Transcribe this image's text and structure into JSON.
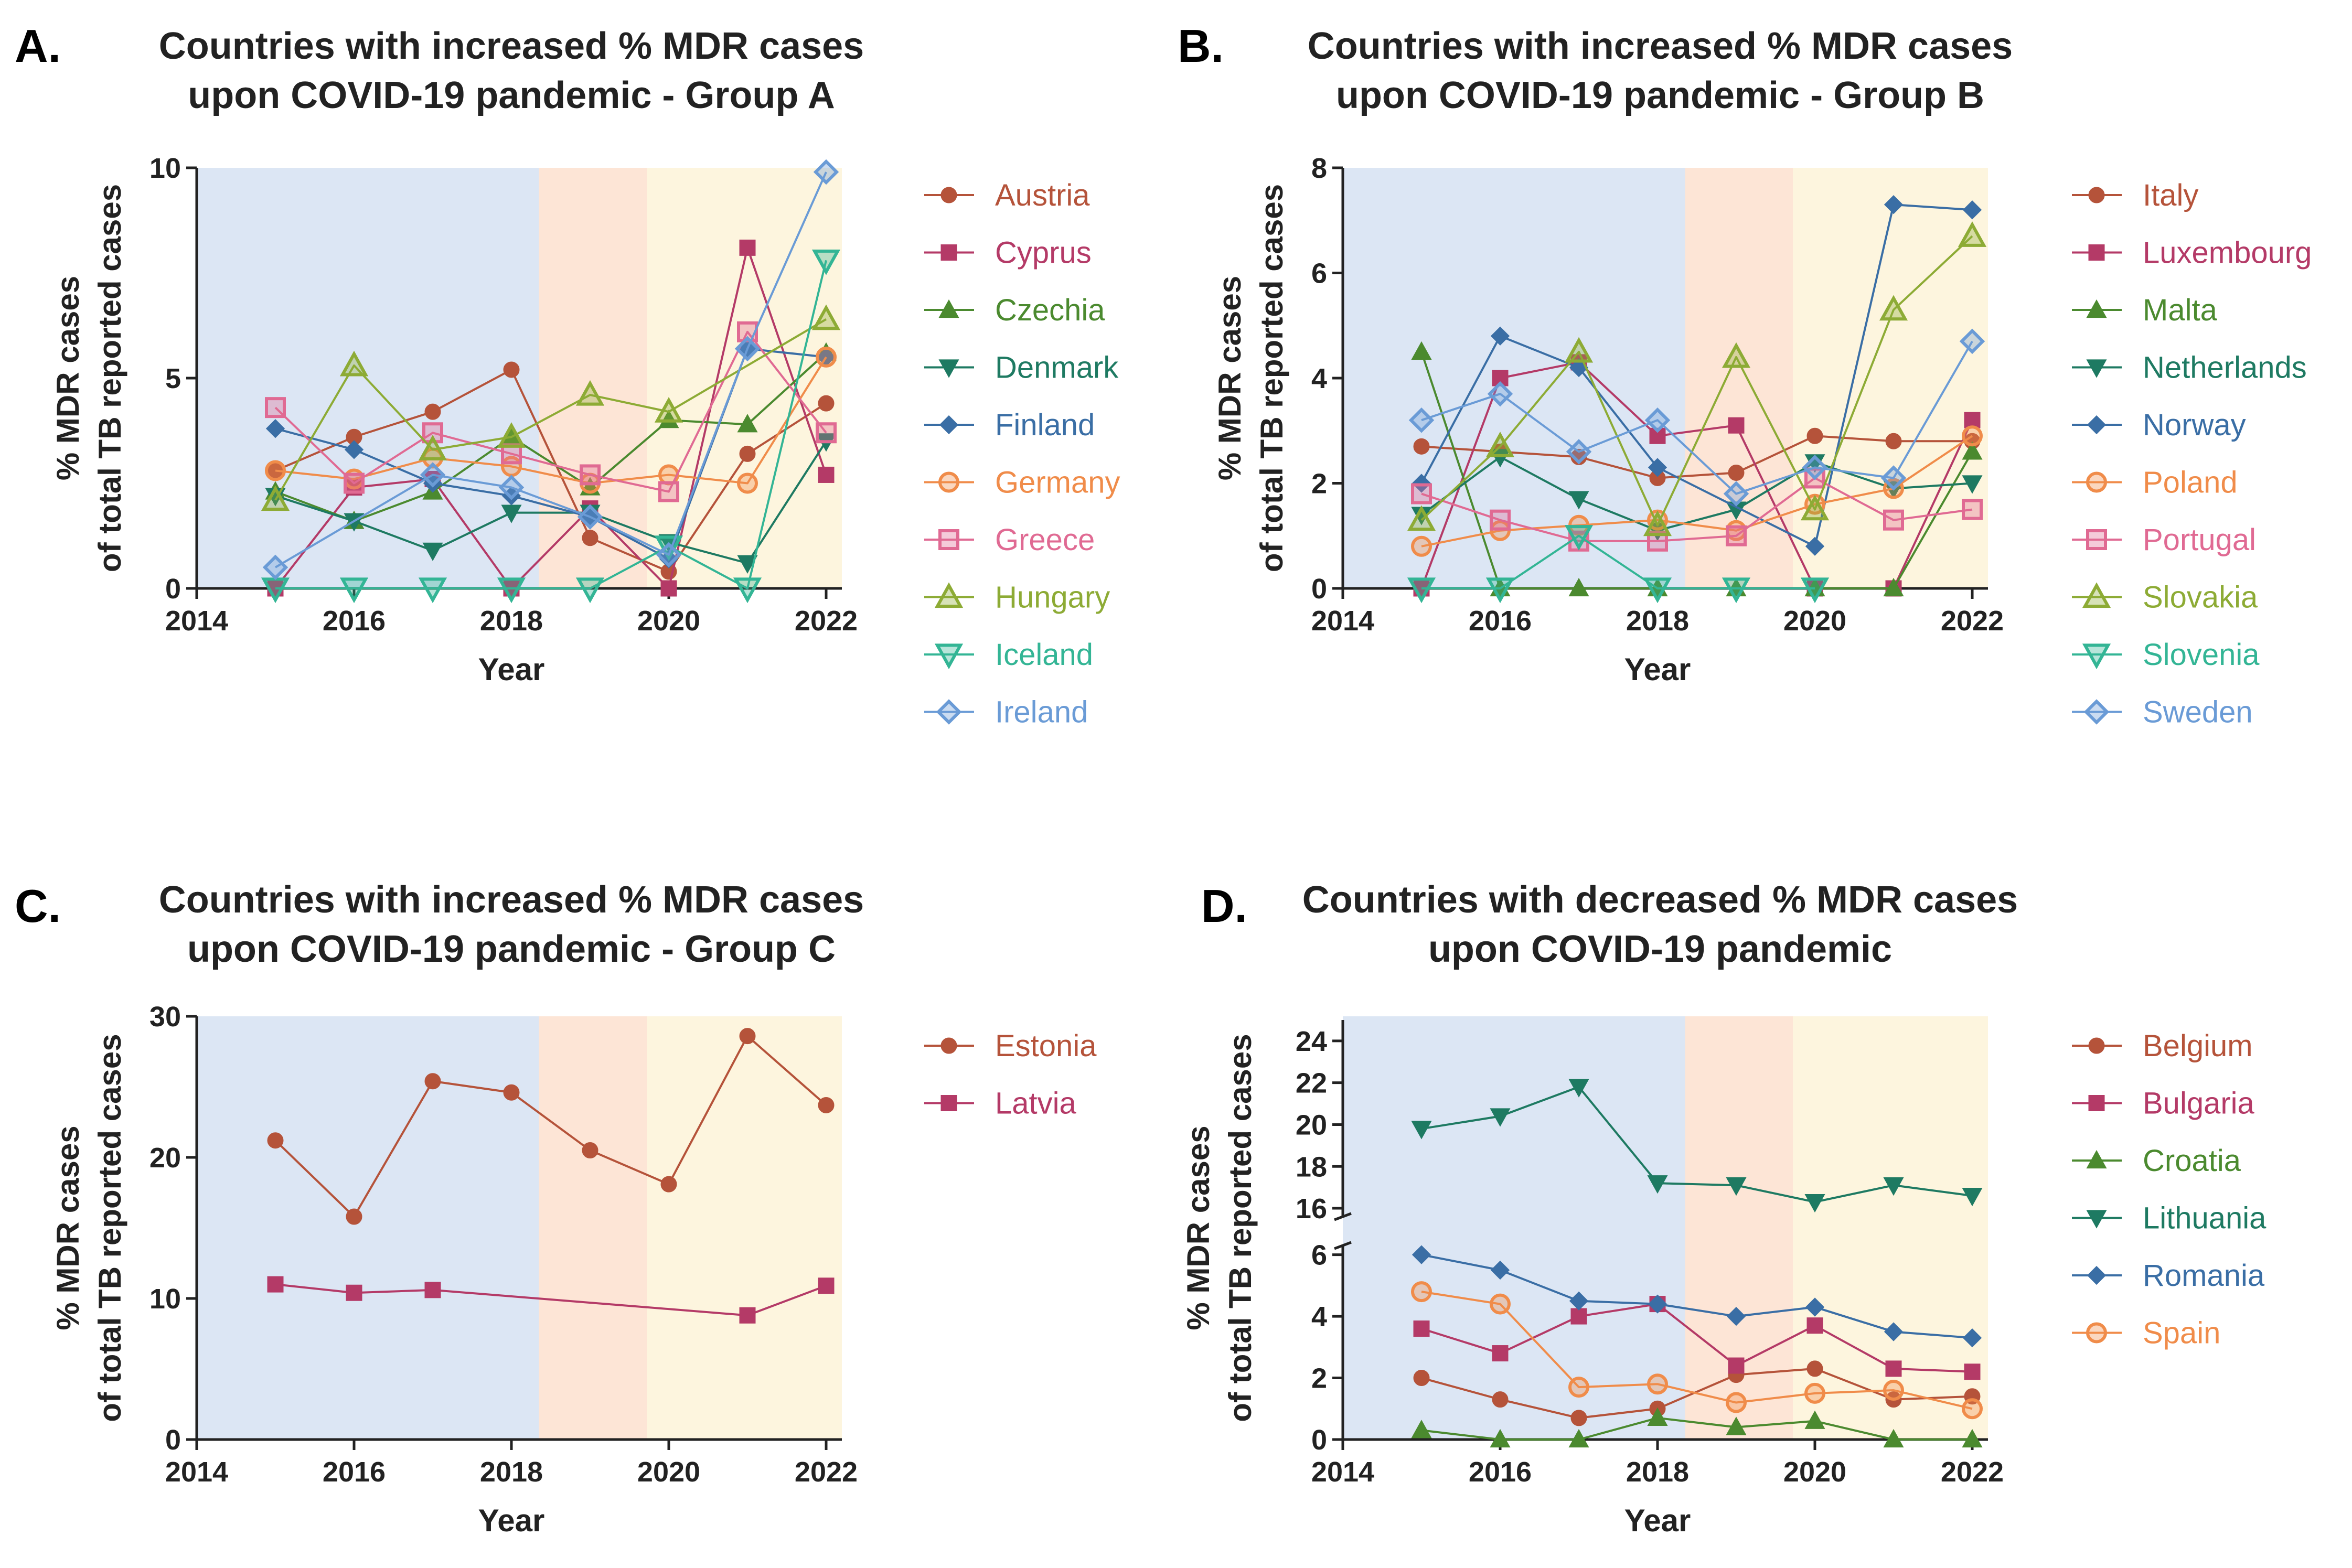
{
  "chart_data": [
    {
      "label": "A.",
      "type": "line",
      "title_lines": [
        "Countries with increased % MDR cases",
        "upon COVID-19 pandemic - Group A"
      ],
      "xlabel": "Year",
      "ylabel_lines": [
        "% MDR cases",
        "of total TB reported cases"
      ],
      "xlim": [
        2014,
        2022
      ],
      "ylim": [
        0,
        10
      ],
      "x_ticks": [
        "2014",
        "2016",
        "2018",
        "2020",
        "2022"
      ],
      "y_ticks": [
        "0",
        "5",
        "10"
      ],
      "periods": [
        {
          "from": 2014,
          "to": 2018.35,
          "color": "#dce6f4"
        },
        {
          "from": 2018.35,
          "to": 2019.72,
          "color": "#fde5d6"
        },
        {
          "from": 2019.72,
          "to": 2022.2,
          "color": "#fdf5de"
        }
      ],
      "years": [
        2015,
        2016,
        2017,
        2018,
        2019,
        2020,
        2021,
        2022
      ],
      "series": [
        {
          "name": "Austria",
          "color": "#b5533a",
          "marker": "circle",
          "values": [
            2.8,
            3.6,
            4.2,
            5.2,
            1.2,
            0.4,
            3.2,
            4.4
          ]
        },
        {
          "name": "Cyprus",
          "color": "#b43a67",
          "marker": "square",
          "values": [
            0,
            2.4,
            2.6,
            0,
            1.9,
            0,
            8.1,
            2.7
          ]
        },
        {
          "name": "Czechia",
          "color": "#4b8a2f",
          "marker": "triangle",
          "values": [
            2.3,
            1.6,
            2.3,
            3.6,
            2.4,
            4.0,
            3.9,
            5.6
          ]
        },
        {
          "name": "Denmark",
          "color": "#1e7a62",
          "marker": "triangle-down",
          "values": [
            2.2,
            1.6,
            0.9,
            1.8,
            1.8,
            1.1,
            0.6,
            3.5
          ]
        },
        {
          "name": "Finland",
          "color": "#3a6ea5",
          "marker": "diamond",
          "values": [
            3.8,
            3.3,
            2.5,
            2.2,
            1.7,
            0.7,
            5.7,
            5.5
          ]
        },
        {
          "name": "Germany",
          "color": "#f08c4a",
          "marker": "circle-open",
          "values": [
            2.8,
            2.6,
            3.1,
            2.9,
            2.5,
            2.7,
            2.5,
            5.5
          ]
        },
        {
          "name": "Greece",
          "color": "#e06a93",
          "marker": "square-open",
          "values": [
            4.3,
            2.5,
            3.7,
            3.2,
            2.7,
            2.3,
            6.1,
            3.7
          ]
        },
        {
          "name": "Hungary",
          "color": "#8dab35",
          "marker": "triangle-open",
          "values": [
            2.1,
            5.3,
            3.3,
            3.6,
            4.6,
            4.2,
            null,
            6.4
          ]
        },
        {
          "name": "Iceland",
          "color": "#33b595",
          "marker": "triangle-down-open",
          "values": [
            0,
            0,
            0,
            0,
            0,
            1.0,
            0,
            7.8
          ]
        },
        {
          "name": "Ireland",
          "color": "#6a9bd6",
          "marker": "diamond-open",
          "values": [
            0.5,
            null,
            2.7,
            2.4,
            1.7,
            0.8,
            5.7,
            9.9
          ]
        }
      ]
    },
    {
      "label": "B.",
      "type": "line",
      "title_lines": [
        "Countries with increased % MDR cases",
        "upon COVID-19 pandemic - Group B"
      ],
      "xlabel": "Year",
      "ylabel_lines": [
        "% MDR cases",
        "of total TB reported cases"
      ],
      "xlim": [
        2014,
        2022
      ],
      "ylim": [
        0,
        8
      ],
      "x_ticks": [
        "2014",
        "2016",
        "2018",
        "2020",
        "2022"
      ],
      "y_ticks": [
        "0",
        "2",
        "4",
        "6",
        "8"
      ],
      "periods": [
        {
          "from": 2014,
          "to": 2018.35,
          "color": "#dce6f4"
        },
        {
          "from": 2018.35,
          "to": 2019.72,
          "color": "#fde5d6"
        },
        {
          "from": 2019.72,
          "to": 2022.2,
          "color": "#fdf5de"
        }
      ],
      "years": [
        2015,
        2016,
        2017,
        2018,
        2019,
        2020,
        2021,
        2022
      ],
      "series": [
        {
          "name": "Italy",
          "color": "#b5533a",
          "marker": "circle",
          "values": [
            2.7,
            2.6,
            2.5,
            2.1,
            2.2,
            2.9,
            2.8,
            2.8
          ]
        },
        {
          "name": "Luxembourg",
          "color": "#b43a67",
          "marker": "square",
          "values": [
            0,
            4.0,
            4.3,
            2.9,
            3.1,
            0,
            0,
            3.2
          ]
        },
        {
          "name": "Malta",
          "color": "#4b8a2f",
          "marker": "triangle",
          "values": [
            4.5,
            0,
            0,
            0,
            0,
            0,
            0,
            2.6
          ]
        },
        {
          "name": "Netherlands",
          "color": "#1e7a62",
          "marker": "triangle-down",
          "values": [
            1.4,
            2.5,
            1.7,
            1.1,
            1.5,
            2.4,
            1.9,
            2.0
          ]
        },
        {
          "name": "Norway",
          "color": "#3a6ea5",
          "marker": "diamond",
          "values": [
            2.0,
            4.8,
            4.2,
            2.3,
            null,
            0.8,
            7.3,
            7.2
          ]
        },
        {
          "name": "Poland",
          "color": "#f08c4a",
          "marker": "circle-open",
          "values": [
            0.8,
            1.1,
            1.2,
            1.3,
            1.1,
            1.6,
            1.9,
            2.9
          ]
        },
        {
          "name": "Portugal",
          "color": "#e06a93",
          "marker": "square-open",
          "values": [
            1.8,
            1.3,
            0.9,
            0.9,
            1.0,
            2.1,
            1.3,
            1.5
          ]
        },
        {
          "name": "Slovakia",
          "color": "#8dab35",
          "marker": "triangle-open",
          "values": [
            1.3,
            2.7,
            4.5,
            1.2,
            4.4,
            1.5,
            5.3,
            6.7
          ]
        },
        {
          "name": "Slovenia",
          "color": "#33b595",
          "marker": "triangle-down-open",
          "values": [
            0,
            0,
            1.0,
            0,
            0,
            0,
            null,
            null
          ]
        },
        {
          "name": "Sweden",
          "color": "#6a9bd6",
          "marker": "diamond-open",
          "values": [
            3.2,
            3.7,
            2.6,
            3.2,
            1.8,
            2.3,
            2.1,
            4.7
          ]
        }
      ]
    },
    {
      "label": "C.",
      "type": "line",
      "title_lines": [
        "Countries with increased % MDR cases",
        "upon COVID-19 pandemic - Group C"
      ],
      "xlabel": "Year",
      "ylabel_lines": [
        "% MDR cases",
        "of total TB reported cases"
      ],
      "xlim": [
        2014,
        2022
      ],
      "ylim": [
        0,
        30
      ],
      "x_ticks": [
        "2014",
        "2016",
        "2018",
        "2020",
        "2022"
      ],
      "y_ticks": [
        "0",
        "10",
        "20",
        "30"
      ],
      "periods": [
        {
          "from": 2014,
          "to": 2018.35,
          "color": "#dce6f4"
        },
        {
          "from": 2018.35,
          "to": 2019.72,
          "color": "#fde5d6"
        },
        {
          "from": 2019.72,
          "to": 2022.2,
          "color": "#fdf5de"
        }
      ],
      "years": [
        2015,
        2016,
        2017,
        2018,
        2019,
        2020,
        2021,
        2022
      ],
      "series": [
        {
          "name": "Estonia",
          "color": "#b5533a",
          "marker": "circle",
          "values": [
            21.2,
            15.8,
            25.4,
            24.6,
            20.5,
            18.1,
            28.6,
            23.7
          ]
        },
        {
          "name": "Latvia",
          "color": "#b43a67",
          "marker": "square",
          "values": [
            11.0,
            10.4,
            10.6,
            null,
            null,
            null,
            8.8,
            10.9
          ]
        }
      ]
    },
    {
      "label": "D.",
      "type": "line",
      "title_lines": [
        "Countries with decreased % MDR cases",
        "upon COVID-19 pandemic"
      ],
      "xlabel": "Year",
      "ylabel_lines": [
        "% MDR cases",
        "of total TB reported cases"
      ],
      "xlim": [
        2014,
        2022
      ],
      "y_axis_break": {
        "lower_range": [
          0,
          6.3
        ],
        "upper_range": [
          15.6,
          25
        ]
      },
      "x_ticks": [
        "2014",
        "2016",
        "2018",
        "2020",
        "2022"
      ],
      "y_ticks_lower": [
        "0",
        "2",
        "4",
        "6"
      ],
      "y_ticks_upper": [
        "16",
        "18",
        "20",
        "22",
        "24"
      ],
      "periods": [
        {
          "from": 2014,
          "to": 2018.35,
          "color": "#dce6f4"
        },
        {
          "from": 2018.35,
          "to": 2019.72,
          "color": "#fde5d6"
        },
        {
          "from": 2019.72,
          "to": 2022.2,
          "color": "#fdf5de"
        }
      ],
      "years": [
        2015,
        2016,
        2017,
        2018,
        2019,
        2020,
        2021,
        2022
      ],
      "series": [
        {
          "name": "Belgium",
          "color": "#b5533a",
          "marker": "circle",
          "values": [
            2.0,
            1.3,
            0.7,
            1.0,
            2.1,
            2.3,
            1.3,
            1.4
          ]
        },
        {
          "name": "Bulgaria",
          "color": "#b43a67",
          "marker": "square",
          "values": [
            3.6,
            2.8,
            4.0,
            4.4,
            2.4,
            3.7,
            2.3,
            2.2
          ]
        },
        {
          "name": "Croatia",
          "color": "#4b8a2f",
          "marker": "triangle",
          "values": [
            0.3,
            0,
            0,
            0.7,
            0.4,
            0.6,
            0,
            0
          ]
        },
        {
          "name": "Lithuania",
          "color": "#1e7a62",
          "marker": "triangle-down",
          "values": [
            19.8,
            20.4,
            21.8,
            17.2,
            17.1,
            16.3,
            17.1,
            16.6
          ]
        },
        {
          "name": "Romania",
          "color": "#3a6ea5",
          "marker": "diamond",
          "values": [
            6.0,
            5.5,
            4.5,
            4.4,
            4.0,
            4.3,
            3.5,
            3.3
          ]
        },
        {
          "name": "Spain",
          "color": "#f08c4a",
          "marker": "circle-open",
          "values": [
            4.8,
            4.4,
            1.7,
            1.8,
            1.2,
            1.5,
            1.6,
            1.0
          ]
        }
      ]
    }
  ]
}
